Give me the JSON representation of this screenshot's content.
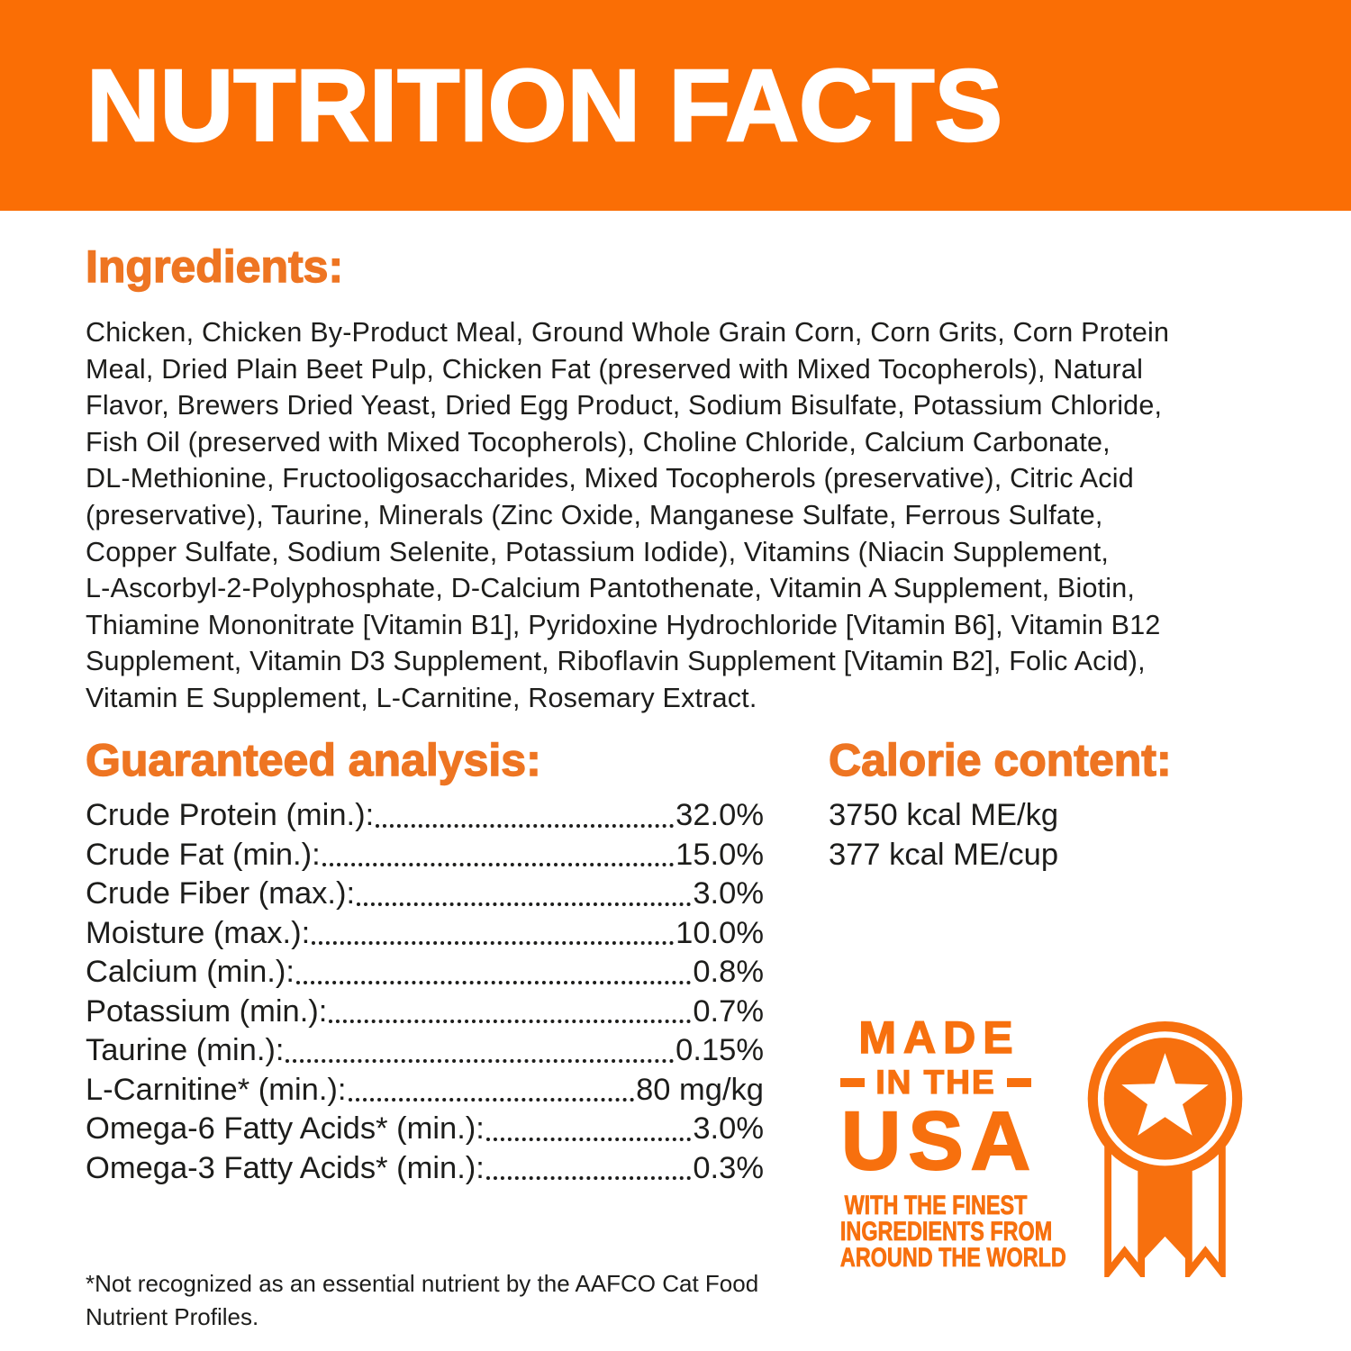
{
  "colors": {
    "band_orange": "#FA6E05",
    "heading_orange": "#EE7522",
    "badge_orange": "#F7700E",
    "text_dark": "#1D1D1B",
    "title_white": "#FFFFFF"
  },
  "header": {
    "title": "NUTRITION FACTS"
  },
  "ingredients": {
    "heading": "Ingredients:",
    "lines": [
      "Chicken, Chicken By-Product Meal, Ground Whole Grain Corn, Corn Grits, Corn Protein",
      "Meal, Dried Plain Beet Pulp, Chicken Fat (preserved with Mixed Tocopherols), Natural",
      "Flavor, Brewers Dried Yeast, Dried Egg Product, Sodium Bisulfate, Potassium Chloride,",
      "Fish Oil (preserved with Mixed Tocopherols), Choline Chloride, Calcium Carbonate,",
      "DL-Methionine, Fructooligosaccharides, Mixed Tocopherols (preservative), Citric Acid",
      "(preservative), Taurine, Minerals (Zinc Oxide, Manganese Sulfate, Ferrous Sulfate,",
      "Copper Sulfate, Sodium Selenite, Potassium Iodide), Vitamins (Niacin Supplement,",
      "L-Ascorbyl-2-Polyphosphate, D-Calcium Pantothenate, Vitamin A Supplement, Biotin,",
      "Thiamine Mononitrate [Vitamin B1], Pyridoxine Hydrochloride [Vitamin B6], Vitamin B12",
      "Supplement, Vitamin D3 Supplement, Riboflavin Supplement [Vitamin B2], Folic Acid),",
      "Vitamin E Supplement, L-Carnitine, Rosemary Extract."
    ]
  },
  "guaranteed_analysis": {
    "heading": "Guaranteed analysis:",
    "rows": [
      {
        "label": "Crude Protein (min.):",
        "value": "32.0%"
      },
      {
        "label": "Crude Fat (min.):",
        "value": "15.0%"
      },
      {
        "label": "Crude Fiber (max.):",
        "value": "3.0%"
      },
      {
        "label": "Moisture (max.):",
        "value": "10.0%"
      },
      {
        "label": "Calcium (min.):",
        "value": "0.8%"
      },
      {
        "label": "Potassium (min.):",
        "value": "0.7%"
      },
      {
        "label": "Taurine (min.):",
        "value": "0.15%"
      },
      {
        "label": "L-Carnitine* (min.):",
        "value": "80 mg/kg"
      },
      {
        "label": "Omega-6 Fatty Acids* (min.):",
        "value": "3.0%"
      },
      {
        "label": "Omega-3 Fatty Acids* (min.):",
        "value": "0.3%"
      }
    ]
  },
  "calorie_content": {
    "heading": "Calorie content:",
    "lines": [
      "3750 kcal ME/kg",
      "377 kcal ME/cup"
    ]
  },
  "made_in_usa": {
    "line1": "MADE",
    "line2": "IN THE",
    "line3": "USA",
    "sub_lines": [
      "WITH THE FINEST",
      "INGREDIENTS FROM",
      "AROUND THE WORLD"
    ],
    "icon": "award-ribbon-star-icon"
  },
  "footnote": {
    "lines": [
      "*Not recognized as an essential nutrient by the AAFCO Cat Food",
      "Nutrient Profiles."
    ]
  }
}
